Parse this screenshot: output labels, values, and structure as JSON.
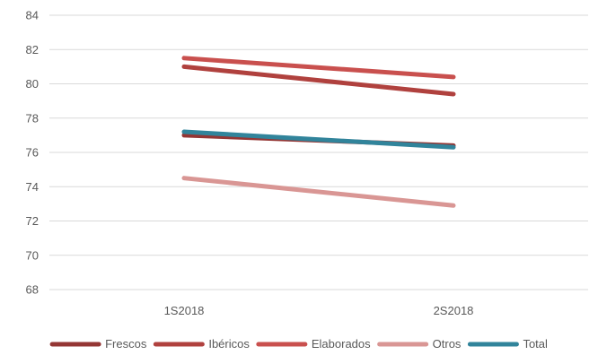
{
  "chart_data": {
    "type": "line",
    "title": "",
    "xlabel": "",
    "ylabel": "",
    "categories": [
      "1S2018",
      "2S2018"
    ],
    "ylim": [
      68,
      84
    ],
    "yticks": [
      68,
      70,
      72,
      74,
      76,
      78,
      80,
      82,
      84
    ],
    "grid": true,
    "legend_position": "bottom",
    "series": [
      {
        "name": "Frescos",
        "values": [
          77.0,
          76.4
        ],
        "color": "#943634"
      },
      {
        "name": "Ibéricos",
        "values": [
          81.0,
          79.4
        ],
        "color": "#b0413e"
      },
      {
        "name": "Elaborados",
        "values": [
          81.5,
          80.4
        ],
        "color": "#c9504e"
      },
      {
        "name": "Otros",
        "values": [
          74.5,
          72.9
        ],
        "color": "#d99694"
      },
      {
        "name": "Total",
        "values": [
          77.2,
          76.3
        ],
        "color": "#31849b"
      }
    ]
  }
}
